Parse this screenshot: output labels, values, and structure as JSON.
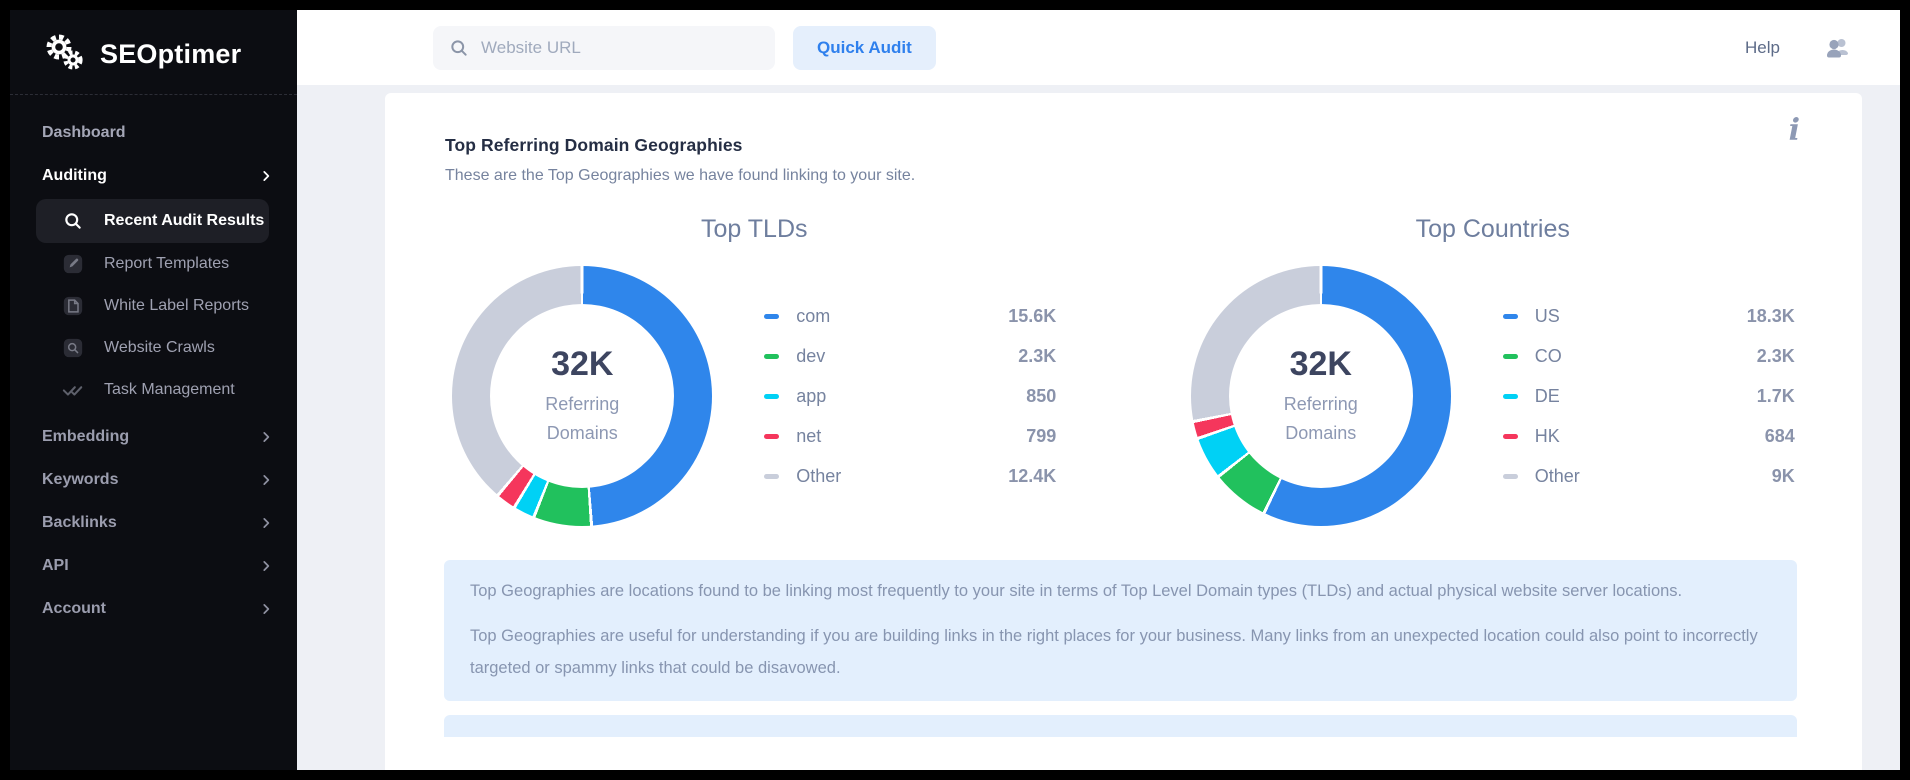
{
  "sidebar": {
    "logo_text": "SEOptimer",
    "items": [
      {
        "label": "Dashboard"
      },
      {
        "label": "Auditing"
      },
      {
        "label": "Recent Audit Results"
      },
      {
        "label": "Report Templates"
      },
      {
        "label": "White Label Reports"
      },
      {
        "label": "Website Crawls"
      },
      {
        "label": "Task Management"
      },
      {
        "label": "Embedding"
      },
      {
        "label": "Keywords"
      },
      {
        "label": "Backlinks"
      },
      {
        "label": "API"
      },
      {
        "label": "Account"
      }
    ]
  },
  "topbar": {
    "search_placeholder": "Website URL",
    "quick_audit_label": "Quick Audit",
    "help_label": "Help"
  },
  "panel": {
    "title": "Top Referring Domain Geographies",
    "subtitle": "These are the Top Geographies we have found linking to your site.",
    "info_glyph": "i"
  },
  "note": {
    "paragraph1": "Top Geographies are locations found to be linking most frequently to your site in terms of Top Level Domain types (TLDs) and actual physical website server locations.",
    "paragraph2": "Top Geographies are useful for understanding if you are building links in the right places for your business. Many links from an unexpected location could also point to incorrectly targeted or spammy links that could be disavowed."
  },
  "colors": {
    "accent_blue": "#2f80ed",
    "sidebar_bg": "#0c0d12",
    "note_bg": "#e3effd",
    "chart_blue": "#2f86eb",
    "chart_green": "#21c15d",
    "chart_cyan": "#00d1f5",
    "chart_red": "#f5365c",
    "chart_gray": "#c9cedb"
  },
  "chart_data": [
    {
      "type": "pie",
      "title": "Top TLDs",
      "center_value": "32K",
      "center_label_lines": [
        "Referring",
        "Domains"
      ],
      "series": [
        {
          "label": "com",
          "value": 15600,
          "display": "15.6K",
          "color": "#2f86eb"
        },
        {
          "label": "dev",
          "value": 2300,
          "display": "2.3K",
          "color": "#21c15d"
        },
        {
          "label": "app",
          "value": 850,
          "display": "850",
          "color": "#00d1f5"
        },
        {
          "label": "net",
          "value": 799,
          "display": "799",
          "color": "#f5365c"
        },
        {
          "label": "Other",
          "value": 12400,
          "display": "12.4K",
          "color": "#c9cedb"
        }
      ]
    },
    {
      "type": "pie",
      "title": "Top Countries",
      "center_value": "32K",
      "center_label_lines": [
        "Referring",
        "Domains"
      ],
      "series": [
        {
          "label": "US",
          "value": 18300,
          "display": "18.3K",
          "color": "#2f86eb"
        },
        {
          "label": "CO",
          "value": 2300,
          "display": "2.3K",
          "color": "#21c15d"
        },
        {
          "label": "DE",
          "value": 1700,
          "display": "1.7K",
          "color": "#00d1f5"
        },
        {
          "label": "HK",
          "value": 684,
          "display": "684",
          "color": "#f5365c"
        },
        {
          "label": "Other",
          "value": 9000,
          "display": "9K",
          "color": "#c9cedb"
        }
      ]
    }
  ]
}
